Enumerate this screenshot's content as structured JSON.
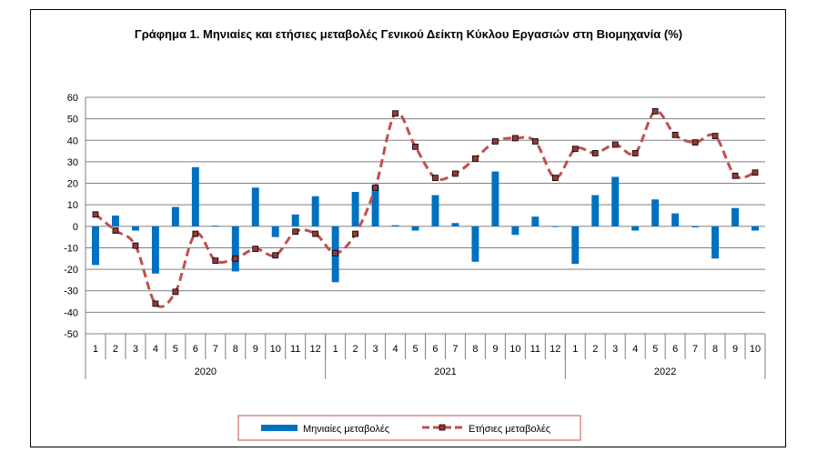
{
  "chart_data": {
    "type": "bar+line",
    "title": "Γράφημα 1. Μηνιαίες και ετήσιες μεταβολές  Γενικού Δείκτη Κύκλου Εργασιών στη Βιομηχανία (%)",
    "ylim": [
      -50,
      60
    ],
    "yticks": [
      60,
      50,
      40,
      30,
      20,
      10,
      0,
      -10,
      -20,
      -30,
      -40,
      -50
    ],
    "grid": true,
    "legend_position": "bottom",
    "month_labels": [
      "1",
      "2",
      "3",
      "4",
      "5",
      "6",
      "7",
      "8",
      "9",
      "10",
      "11",
      "12",
      "1",
      "2",
      "3",
      "4",
      "5",
      "6",
      "7",
      "8",
      "9",
      "10",
      "11",
      "12",
      "1",
      "2",
      "3",
      "4",
      "5",
      "6",
      "7",
      "8",
      "9",
      "10"
    ],
    "years": [
      {
        "label": "2020",
        "count": 12
      },
      {
        "label": "2021",
        "count": 12
      },
      {
        "label": "2022",
        "count": 10
      }
    ],
    "series": [
      {
        "name": "Μηνιαίες μεταβολές",
        "kind": "bar",
        "color": "#0070C0",
        "values": [
          -18,
          5,
          -2,
          -22,
          9,
          27.5,
          0.3,
          -21,
          18,
          -5,
          5.5,
          14,
          -26,
          16,
          19,
          0.5,
          -2,
          14.5,
          1.5,
          -16.5,
          25.5,
          -4,
          4.5,
          -0.3,
          -17.5,
          14.5,
          23,
          -2,
          12.5,
          6,
          -0.5,
          -15,
          8.5,
          -2
        ]
      },
      {
        "name": "Ετήσιες μεταβολές",
        "kind": "line",
        "color": "#C0504D",
        "values": [
          5.5,
          -2,
          -9,
          -36,
          -30.5,
          -3.5,
          -16,
          -15,
          -10.5,
          -13.5,
          -2.5,
          -3.5,
          -12.5,
          -3.5,
          18,
          52.5,
          37,
          22.5,
          24.5,
          31.5,
          39.5,
          41,
          39.5,
          22.5,
          36,
          34,
          38,
          34,
          53.5,
          42.5,
          39,
          42,
          23.5,
          25
        ]
      }
    ]
  },
  "colors": {
    "bar": "#0070C0",
    "line": "#C0504D",
    "marker_fill": "#953735",
    "grid": "#808080"
  }
}
